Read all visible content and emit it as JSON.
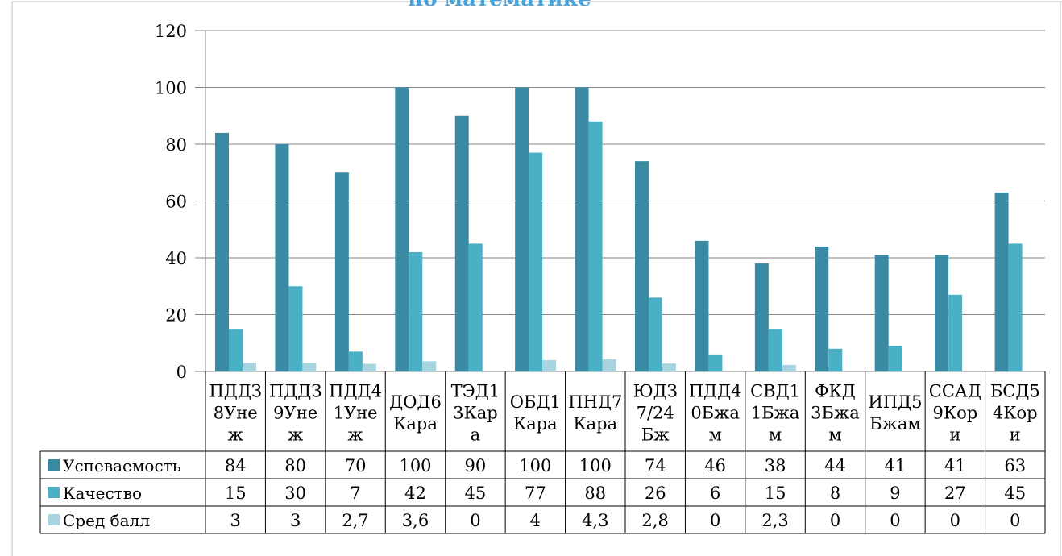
{
  "chart_data": {
    "type": "bar",
    "title": "по математике",
    "categories": [
      [
        "ПДДЗ",
        "8Уне",
        "ж"
      ],
      [
        "ПДДЗ",
        "9Уне",
        "ж"
      ],
      [
        "ПДД4",
        "1Уне",
        "ж"
      ],
      [
        "ДОД6",
        "Кара"
      ],
      [
        "ТЭД1",
        "3Кар",
        "а"
      ],
      [
        "ОБД1",
        "Кара"
      ],
      [
        "ПНД7",
        "Кара"
      ],
      [
        "ЮДЗ",
        "7/24",
        "Бж"
      ],
      [
        "ПДД4",
        "0Бжа",
        "м"
      ],
      [
        "СВД1",
        "1Бжа",
        "м"
      ],
      [
        "ФКД",
        "3Бжа",
        "м"
      ],
      [
        "ИПД5",
        "Бжам"
      ],
      [
        "ССАД",
        "9Кор",
        "и"
      ],
      [
        "БСД5",
        "4Кор",
        "и"
      ]
    ],
    "series": [
      {
        "name": "Успеваемость",
        "color": "#3b8aa3",
        "values": [
          84,
          80,
          70,
          100,
          90,
          100,
          100,
          74,
          46,
          38,
          44,
          41,
          41,
          63
        ],
        "labels": [
          "84",
          "80",
          "70",
          "100",
          "90",
          "100",
          "100",
          "74",
          "46",
          "38",
          "44",
          "41",
          "41",
          "63"
        ]
      },
      {
        "name": "Качество",
        "color": "#4ab0c6",
        "values": [
          15,
          30,
          7,
          42,
          45,
          77,
          88,
          26,
          6,
          15,
          8,
          9,
          27,
          45
        ],
        "labels": [
          "15",
          "30",
          "7",
          "42",
          "45",
          "77",
          "88",
          "26",
          "6",
          "15",
          "8",
          "9",
          "27",
          "45"
        ]
      },
      {
        "name": "Сред балл",
        "color": "#a8d4df",
        "values": [
          3,
          3,
          2.7,
          3.6,
          0,
          4,
          4.3,
          2.8,
          0,
          2.3,
          0,
          0,
          0,
          0
        ],
        "labels": [
          "3",
          "3",
          "2,7",
          "3,6",
          "0",
          "4",
          "4,3",
          "2,8",
          "0",
          "2,3",
          "0",
          "0",
          "0",
          "0"
        ]
      }
    ],
    "ylim": [
      0,
      120
    ],
    "yticks": [
      "0",
      "20",
      "40",
      "60",
      "80",
      "100",
      "120"
    ],
    "grid": true,
    "legend": "data-table"
  }
}
